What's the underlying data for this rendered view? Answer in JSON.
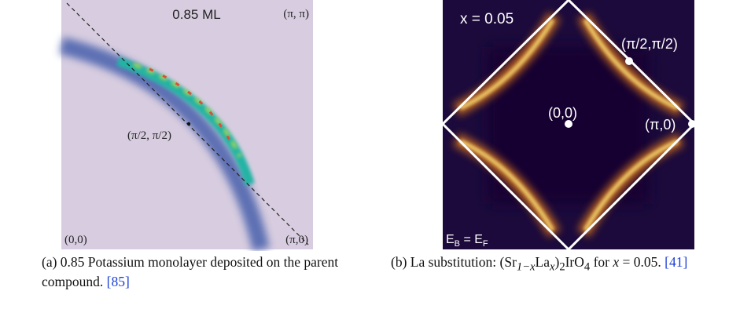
{
  "figures": [
    {
      "panel": {
        "coverage": "0.85 ML",
        "corner_pi_pi": "(π, π)",
        "mid": "(π/2, π/2)",
        "origin": "(0,0)",
        "corner_pi_0": "(π,0)"
      },
      "caption": {
        "text": "(a) 0.85 Potassium monolayer deposited on the parent compound.",
        "ref": "[85]"
      }
    },
    {
      "panel": {
        "doping": "x = 0.05",
        "mid": "(π/2,π/2)",
        "origin": "(0,0)",
        "corner_pi_0": "(π,0)",
        "energy": [
          "E",
          "B",
          " = E",
          "F"
        ]
      },
      "caption": {
        "text": "(b) La substitution:",
        "formula": [
          "(Sr",
          "1−x",
          "La",
          "x",
          ")",
          "2",
          "IrO",
          "4"
        ],
        "tail": "for",
        "math": "x",
        "tail2": "= 0.05.",
        "ref": "[41]"
      }
    }
  ]
}
